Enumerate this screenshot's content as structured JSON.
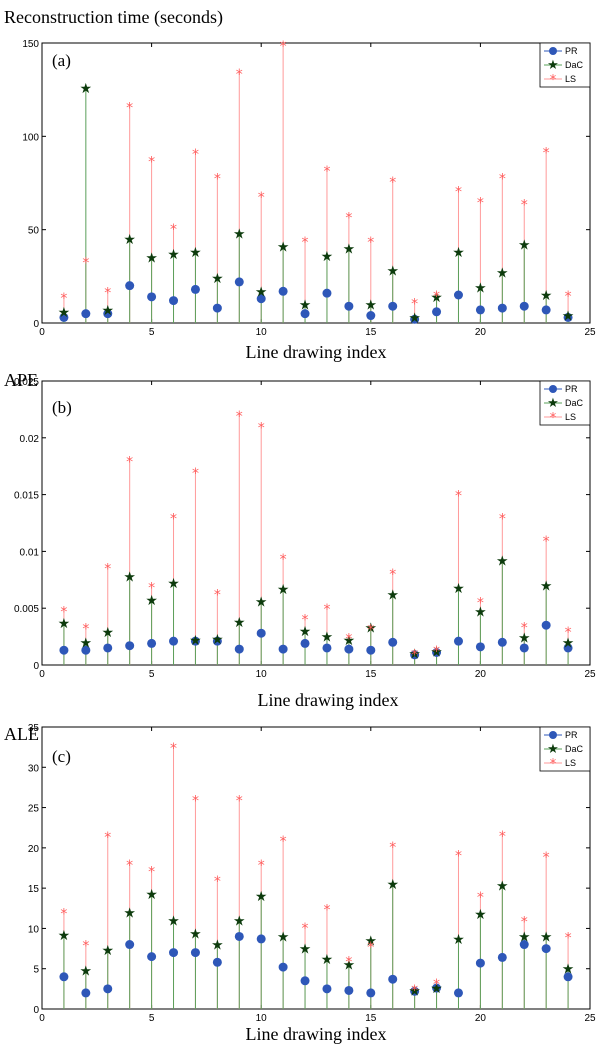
{
  "colors": {
    "PR": "#2e57b8",
    "DaC": "#0d3b0d",
    "LS": "#ff5a5a",
    "DaC_stem": "#5aa05a",
    "LS_stem": "#ff9a9a"
  },
  "chart_data": [
    {
      "type": "stem",
      "title": "Reconstruction time (seconds)",
      "panel_label": "(a)",
      "xlabel": "Line drawing index",
      "xlim": [
        0,
        25
      ],
      "ylim": [
        0,
        150
      ],
      "xticks": [
        "0",
        "5",
        "10",
        "15",
        "20",
        "25"
      ],
      "yticks": [
        "0",
        "50",
        "100",
        "150"
      ],
      "legend": [
        "PR",
        "DaC",
        "LS"
      ],
      "legend_position": "top-right",
      "x": [
        1,
        2,
        3,
        4,
        5,
        6,
        7,
        8,
        9,
        10,
        11,
        12,
        13,
        14,
        15,
        16,
        17,
        18,
        19,
        20,
        21,
        22,
        23,
        24
      ],
      "series": [
        {
          "name": "PR",
          "values": [
            3,
            5,
            5,
            20,
            14,
            12,
            18,
            8,
            22,
            13,
            17,
            5,
            16,
            9,
            4,
            9,
            2,
            6,
            15,
            7,
            8,
            9,
            7,
            3
          ]
        },
        {
          "name": "DaC",
          "values": [
            6,
            126,
            7,
            45,
            35,
            37,
            38,
            24,
            48,
            17,
            41,
            10,
            36,
            40,
            10,
            28,
            3,
            14,
            38,
            19,
            27,
            42,
            15,
            4
          ]
        },
        {
          "name": "LS",
          "values": [
            14,
            33,
            17,
            116,
            87,
            51,
            91,
            78,
            134,
            68,
            149,
            44,
            82,
            57,
            44,
            76,
            11,
            15,
            71,
            65,
            78,
            64,
            92,
            15
          ]
        }
      ]
    },
    {
      "type": "stem",
      "title": "APE",
      "panel_label": "(b)",
      "xlabel": "Line drawing index",
      "xlim": [
        0,
        25
      ],
      "ylim": [
        0,
        0.025
      ],
      "xticks": [
        "0",
        "5",
        "10",
        "15",
        "20",
        "25"
      ],
      "yticks": [
        "0",
        "0.005",
        "0.01",
        "0.015",
        "0.02",
        "0.025"
      ],
      "legend": [
        "PR",
        "DaC",
        "LS"
      ],
      "legend_position": "top-right",
      "x": [
        1,
        2,
        3,
        4,
        5,
        6,
        7,
        8,
        9,
        10,
        11,
        12,
        13,
        14,
        15,
        16,
        17,
        18,
        19,
        20,
        21,
        22,
        23,
        24
      ],
      "series": [
        {
          "name": "PR",
          "values": [
            0.0013,
            0.0013,
            0.0015,
            0.0017,
            0.0019,
            0.0021,
            0.0021,
            0.0021,
            0.0014,
            0.0028,
            0.0014,
            0.0019,
            0.0015,
            0.0014,
            0.0013,
            0.002,
            0.0009,
            0.0011,
            0.0021,
            0.0016,
            0.002,
            0.0015,
            0.0035,
            0.0015
          ]
        },
        {
          "name": "DaC",
          "values": [
            0.0037,
            0.002,
            0.0029,
            0.0078,
            0.0057,
            0.0072,
            0.0022,
            0.0023,
            0.0038,
            0.0056,
            0.0067,
            0.003,
            0.0025,
            0.0022,
            0.0033,
            0.0062,
            0.001,
            0.0012,
            0.0068,
            0.0047,
            0.0092,
            0.0024,
            0.007,
            0.002
          ]
        },
        {
          "name": "LS",
          "values": [
            0.0048,
            0.0033,
            0.0086,
            0.018,
            0.0069,
            0.013,
            0.017,
            0.0063,
            0.022,
            0.021,
            0.0094,
            0.0041,
            0.005,
            0.0024,
            0.0032,
            0.0081,
            0.001,
            0.0013,
            0.015,
            0.0056,
            0.013,
            0.0034,
            0.011,
            0.003
          ]
        }
      ]
    },
    {
      "type": "stem",
      "title": "ALE",
      "panel_label": "(c)",
      "xlabel": "Line drawing index",
      "xlim": [
        0,
        25
      ],
      "ylim": [
        0,
        35
      ],
      "xticks": [
        "0",
        "5",
        "10",
        "15",
        "20",
        "25"
      ],
      "yticks": [
        "0",
        "5",
        "10",
        "15",
        "20",
        "25",
        "30",
        "35"
      ],
      "legend": [
        "PR",
        "DaC",
        "LS"
      ],
      "legend_position": "top-right",
      "x": [
        1,
        2,
        3,
        4,
        5,
        6,
        7,
        8,
        9,
        10,
        11,
        12,
        13,
        14,
        15,
        16,
        17,
        18,
        19,
        20,
        21,
        22,
        23,
        24
      ],
      "series": [
        {
          "name": "PR",
          "values": [
            4,
            2,
            2.5,
            8,
            6.5,
            7,
            7,
            5.8,
            9,
            8.7,
            5.2,
            3.5,
            2.5,
            2.3,
            2,
            3.7,
            2.2,
            2.6,
            2,
            5.7,
            6.4,
            8,
            7.5,
            4
          ]
        },
        {
          "name": "DaC",
          "values": [
            9.2,
            4.8,
            7.3,
            12,
            14.3,
            11,
            9.4,
            8,
            11,
            14,
            9,
            7.5,
            6.2,
            5.5,
            8.5,
            15.5,
            2.3,
            2.6,
            8.7,
            11.8,
            15.3,
            9,
            9,
            5
          ]
        },
        {
          "name": "LS",
          "values": [
            12,
            8,
            21.5,
            18,
            17.2,
            32.5,
            26,
            16,
            26,
            18,
            21,
            10.2,
            12.5,
            6,
            7.8,
            20.2,
            2.5,
            3.2,
            19.2,
            14,
            21.6,
            11,
            19,
            9
          ]
        }
      ]
    }
  ]
}
